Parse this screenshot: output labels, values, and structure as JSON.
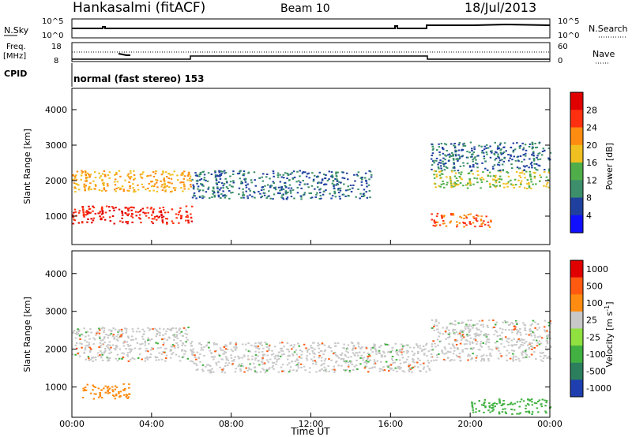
{
  "header": {
    "station": "Hankasalmi (fitACF)",
    "beam": "Beam 10",
    "date": "18/Jul/2013"
  },
  "noise_panel": {
    "left_label": "N.Sky",
    "right_label": "N.Search",
    "left_ticks": [
      "10^5",
      "10^0"
    ],
    "right_ticks": [
      "10^5",
      "10^0"
    ]
  },
  "freq_panel": {
    "left_label_top": "Freq.",
    "left_label_unit": "[MHz]",
    "right_label": "Nave",
    "left_ticks": [
      "18",
      "8"
    ],
    "right_ticks": [
      "60",
      "0"
    ]
  },
  "cpid": {
    "label": "CPID",
    "text": "normal (fast stereo) 153"
  },
  "x_axis": {
    "label": "Time UT",
    "ticks": [
      "00:00",
      "04:00",
      "08:00",
      "12:00",
      "16:00",
      "20:00",
      "00:00"
    ]
  },
  "chart_data": [
    {
      "type": "heatmap",
      "title": "",
      "xlabel": "Time UT",
      "ylabel": "Slant Range [km]",
      "xlim": [
        "00:00",
        "24:00"
      ],
      "ylim": [
        200,
        4600
      ],
      "y_ticks": [
        "1000",
        "2000",
        "3000",
        "4000"
      ],
      "colorbar": {
        "label": "Power [dB]",
        "ticks": [
          "4",
          "8",
          "12",
          "16",
          "20",
          "24",
          "28"
        ],
        "colors": [
          "#1010ff",
          "#2040a0",
          "#3c8f6a",
          "#4fae4a",
          "#f0c020",
          "#ff8c10",
          "#ff3010",
          "#e00000"
        ]
      },
      "bands": [
        {
          "t0": 0.0,
          "t1": 6.0,
          "r0": 800,
          "r1": 1300,
          "level": 28
        },
        {
          "t0": 0.0,
          "t1": 6.0,
          "r0": 1700,
          "r1": 2300,
          "level": 20
        },
        {
          "t0": 6.0,
          "t1": 15.0,
          "r0": 1500,
          "r1": 2300,
          "level": 8
        },
        {
          "t0": 18.0,
          "t1": 24.0,
          "r0": 1800,
          "r1": 2300,
          "level": 16
        },
        {
          "t0": 18.0,
          "t1": 21.0,
          "r0": 700,
          "r1": 1100,
          "level": 24
        },
        {
          "t0": 18.0,
          "t1": 24.0,
          "r0": 2300,
          "r1": 3100,
          "level": 8
        }
      ]
    },
    {
      "type": "heatmap",
      "title": "",
      "xlabel": "Time UT",
      "ylabel": "Slant Range [km]",
      "xlim": [
        "00:00",
        "24:00"
      ],
      "ylim": [
        200,
        4600
      ],
      "y_ticks": [
        "1000",
        "2000",
        "3000",
        "4000"
      ],
      "colorbar": {
        "label": "Velocity [m s^-1]",
        "ticks": [
          "1000",
          "500",
          "100",
          "25",
          "-25",
          "-100",
          "-500",
          "-1000"
        ],
        "colors": [
          "#1f3fb0",
          "#2c7f5c",
          "#41b141",
          "#90e040",
          "#c8c8c8",
          "#ff8c10",
          "#ff5a10",
          "#e00000"
        ]
      },
      "bands": [
        {
          "t0": 0.0,
          "t1": 6.0,
          "r0": 1700,
          "r1": 2600,
          "level": 0
        },
        {
          "t0": 6.0,
          "t1": 18.0,
          "r0": 1400,
          "r1": 2200,
          "level": 0
        },
        {
          "t0": 18.0,
          "t1": 24.0,
          "r0": 1700,
          "r1": 2800,
          "level": 0
        },
        {
          "t0": 0.5,
          "t1": 3.0,
          "r0": 700,
          "r1": 1100,
          "level": -100
        },
        {
          "t0": 20.0,
          "t1": 24.0,
          "r0": 300,
          "r1": 700,
          "level": 100
        }
      ]
    }
  ]
}
